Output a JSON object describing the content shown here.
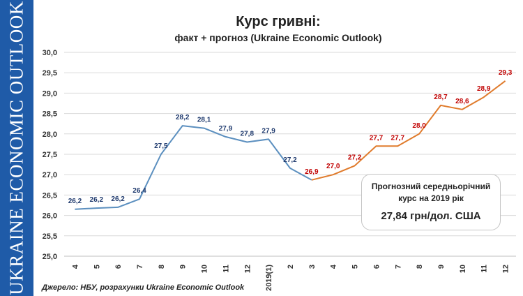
{
  "sidebar": {
    "text": "UKRAINE ECONOMIC OUTLOOK"
  },
  "colors": {
    "sidebar_bg": "#1f5ba8",
    "fact_line": "#5b8fbf",
    "fact_label": "#1f3a6e",
    "forecast_line": "#e07b2c",
    "forecast_label": "#c00000",
    "grid": "#d9d9d9"
  },
  "chart_data": {
    "type": "line",
    "title": "Курс гривні:",
    "subtitle": "факт + прогноз (Ukraine Economic Outlook)",
    "categories": [
      "4",
      "5",
      "6",
      "7",
      "8",
      "9",
      "10",
      "11",
      "12",
      "2019(1)",
      "2",
      "3",
      "4",
      "5",
      "6",
      "7",
      "8",
      "9",
      "10",
      "11",
      "12"
    ],
    "series": [
      {
        "values": [
          26.15,
          26.18,
          26.2,
          26.4,
          27.5,
          28.2,
          28.14,
          27.93,
          27.8,
          27.87,
          27.16,
          26.87,
          null,
          null,
          null,
          null,
          null,
          null,
          null,
          null,
          null
        ]
      },
      {
        "values": [
          null,
          null,
          null,
          null,
          null,
          null,
          null,
          null,
          null,
          null,
          null,
          26.87,
          27.0,
          27.22,
          27.7,
          27.7,
          28.0,
          28.7,
          28.6,
          28.9,
          29.3
        ]
      }
    ],
    "data_labels": [
      "26,2",
      "26,2",
      "26,2",
      "26,4",
      "27,5",
      "28,2",
      "28,1",
      "27,9",
      "27,8",
      "27,9",
      "27,2",
      "26,9",
      "27,0",
      "27,2",
      "27,7",
      "27,7",
      "28,0",
      "28,7",
      "28,6",
      "28,9",
      "29,3"
    ],
    "y_tick_labels": [
      "25,0",
      "25,5",
      "26,0",
      "26,5",
      "27,0",
      "27,5",
      "28,0",
      "28,5",
      "29,0",
      "29,5",
      "30,0"
    ],
    "ylim": [
      25.0,
      30.0
    ],
    "grid": true,
    "legend": "none"
  },
  "forecast_box": {
    "line1": "Прогнозний середньорічний",
    "line2": "курс на 2019 рік",
    "value": "27,84 грн/дол. США"
  },
  "source": "Джерело: НБУ, розрахунки Ukraine Economic Outlook"
}
